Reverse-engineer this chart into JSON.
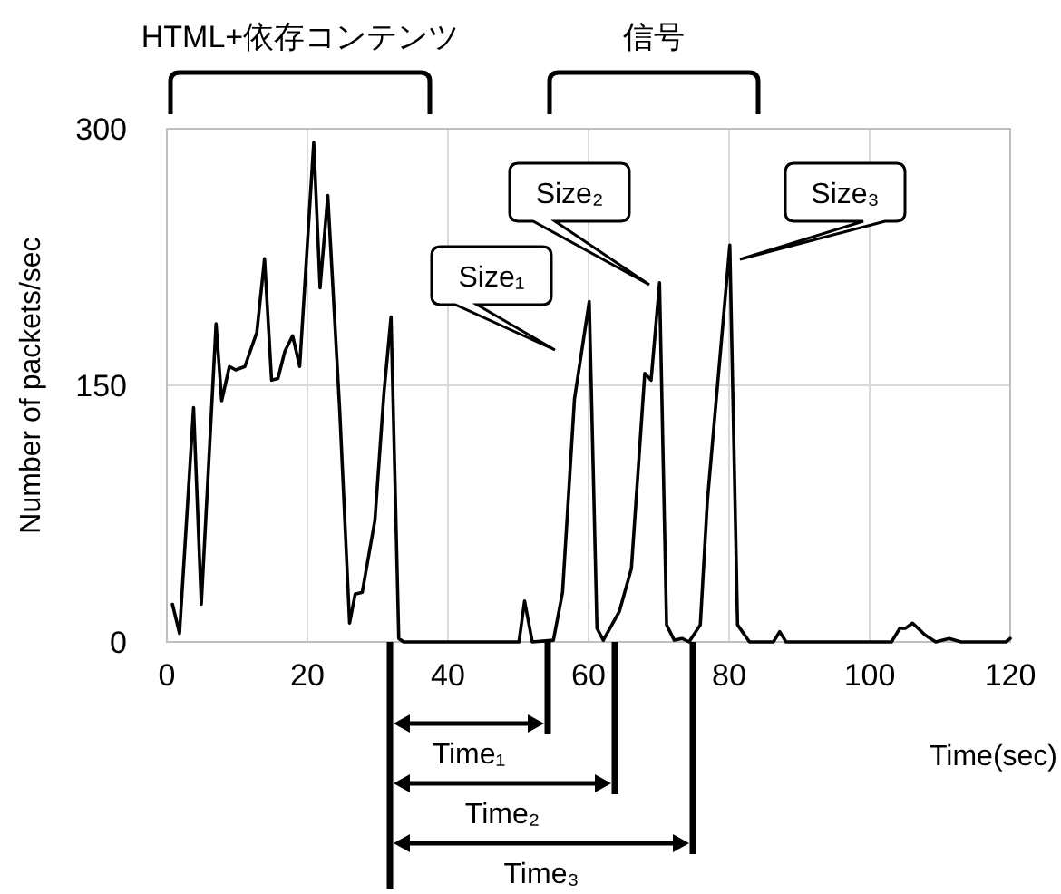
{
  "chart_data": {
    "type": "line",
    "xlabel": "Time(sec)",
    "ylabel": "Number of packets/sec",
    "series": [
      {
        "color": "#000000",
        "x": [
          0.8,
          1.8,
          3.8,
          4.9,
          7,
          7.8,
          8.9,
          9.8,
          11.1,
          12.8,
          13.9,
          14.9,
          15.8,
          16.8,
          17.9,
          18.9,
          20.9,
          21.8,
          22.9,
          24.6,
          26,
          26.8,
          27.8,
          29.6,
          30.9,
          31.9,
          33,
          33.7,
          50.1,
          50.9,
          52,
          55,
          56.3,
          58,
          60.1,
          61.2,
          62.1,
          64.4,
          66.1,
          68,
          68.9,
          70.1,
          71.1,
          72.2,
          73.3,
          74.3,
          75.9,
          76.9,
          80.1,
          81.2,
          82.9,
          86.3,
          87.2,
          88.1,
          103.1,
          104.3,
          105.1,
          106.1,
          107.9,
          109.4,
          111.3,
          113,
          119.4,
          120
        ],
        "values": [
          22,
          5,
          137,
          22,
          186,
          141,
          161,
          159,
          161,
          181,
          224,
          153,
          154,
          170,
          179,
          161,
          292,
          207,
          261,
          135,
          11,
          28,
          29,
          71,
          146,
          190,
          2,
          0,
          0,
          24,
          0,
          1,
          29,
          142,
          199,
          8,
          1,
          18,
          43,
          157,
          153,
          210,
          10,
          1,
          2,
          0,
          10,
          82,
          232,
          10,
          0,
          0,
          6,
          0,
          0,
          8,
          8,
          11,
          4,
          0,
          2,
          0,
          0,
          2
        ]
      }
    ],
    "xlim": [
      0,
      120
    ],
    "xticks": [
      0,
      20,
      40,
      60,
      80,
      100,
      120
    ],
    "ylim": [
      0,
      300
    ],
    "yticks": [
      0,
      150,
      300
    ],
    "grid": true,
    "marker": "none",
    "line_style": "solid",
    "annotations": [
      "HTML+依存コンテンツ",
      "信号",
      "Size₁",
      "Size₂",
      "Size₃",
      "Time₁",
      "Time₂",
      "Time₃"
    ]
  }
}
